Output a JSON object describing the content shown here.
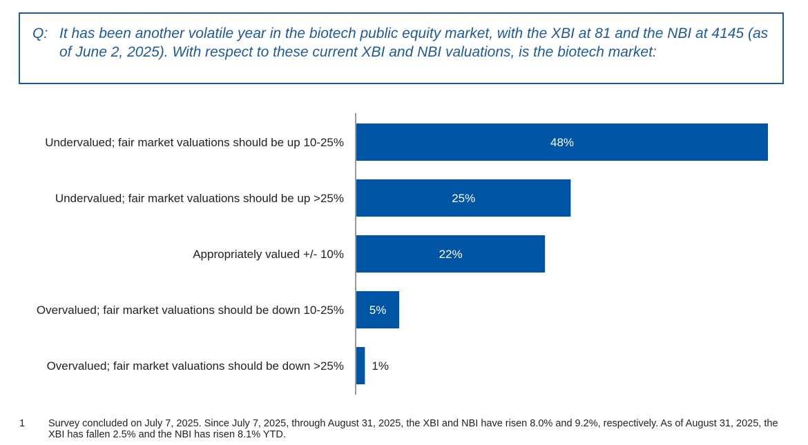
{
  "question": {
    "label": "Q:",
    "text": "It has been another volatile year in the biotech public equity market, with the XBI at 81 and the NBI at 4145 (as of June 2, 2025). With respect to these current XBI and NBI valuations, is the biotech market:"
  },
  "chart_data": {
    "type": "bar",
    "orientation": "horizontal",
    "categories": [
      "Undervalued; fair market valuations should be up 10-25%",
      "Undervalued; fair market valuations should be up >25%",
      "Appropriately valued +/- 10%",
      "Overvalued; fair market valuations should be down 10-25%",
      "Overvalued; fair market valuations should be down >25%"
    ],
    "values": [
      48,
      25,
      22,
      5,
      1
    ],
    "value_labels": [
      "48%",
      "25%",
      "22%",
      "5%",
      "1%"
    ],
    "xlim": [
      0,
      48
    ],
    "bar_color": "#0054a4",
    "grid": false
  },
  "footnote": {
    "number": "1",
    "text": "Survey concluded on July 7, 2025. Since July 7, 2025, through August 31, 2025, the XBI and NBI have risen 8.0% and 9.2%, respectively. As of August 31, 2025, the XBI has fallen 2.5% and the NBI has risen 8.1% YTD."
  }
}
